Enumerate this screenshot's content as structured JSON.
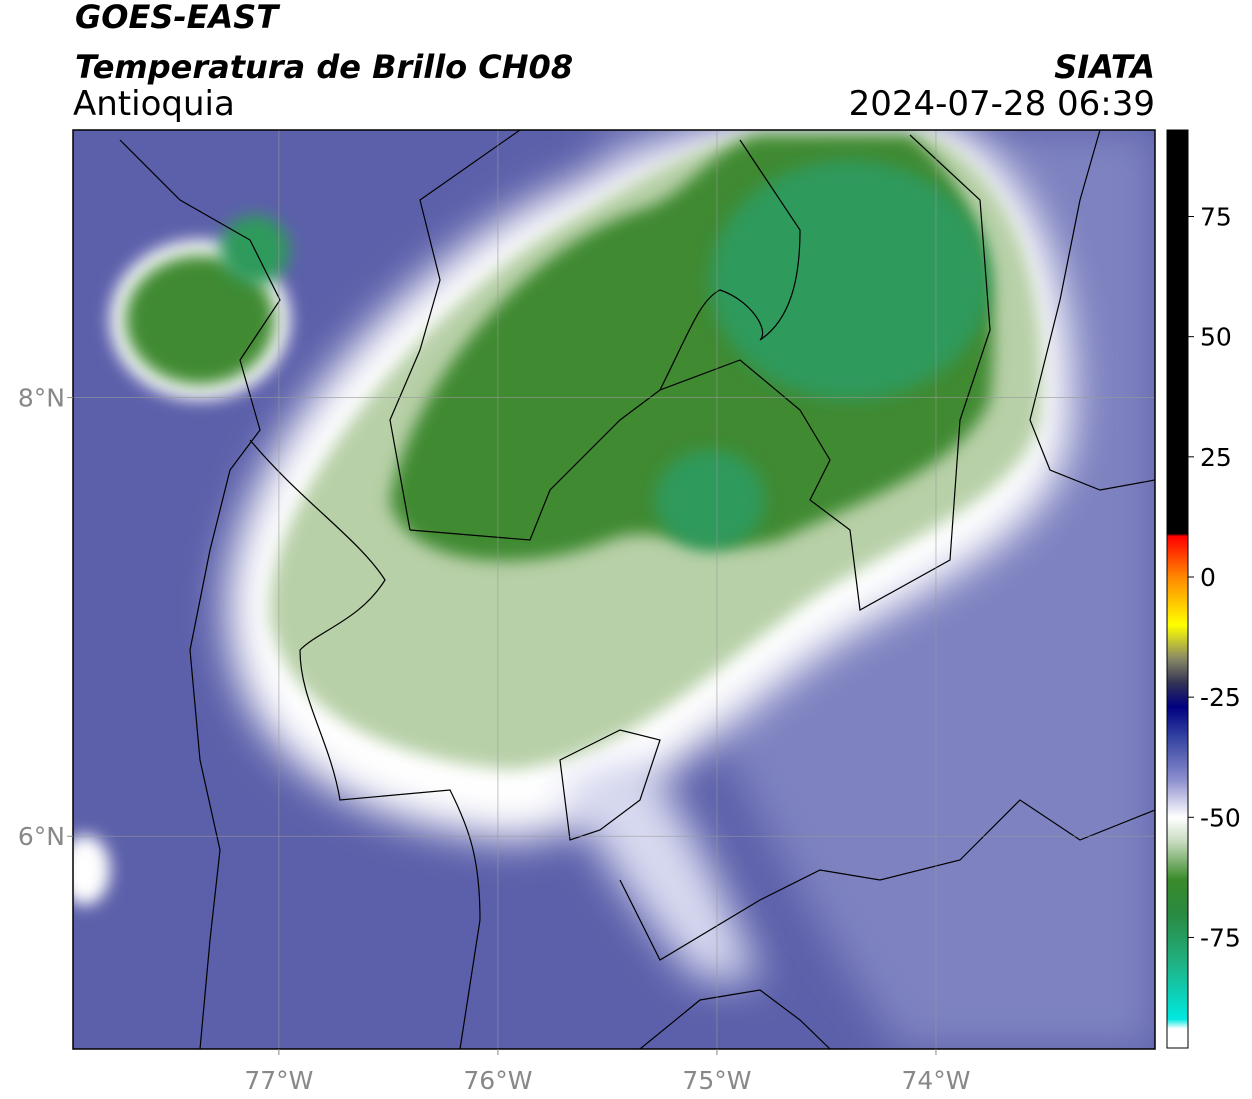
{
  "header": {
    "title": "GOES-EAST",
    "subtitle": "Temperatura de Brillo CH08",
    "region": "Antioquia",
    "source": "SIATA",
    "datetime": "2024-07-28 06:39"
  },
  "map": {
    "xlim": [
      -77.94,
      -73.0
    ],
    "ylim": [
      5.03,
      9.22
    ],
    "xticks": [
      {
        "value": -77,
        "label": "77°W"
      },
      {
        "value": -76,
        "label": "76°W"
      },
      {
        "value": -75,
        "label": "75°W"
      },
      {
        "value": -74,
        "label": "74°W"
      }
    ],
    "yticks": [
      {
        "value": 8,
        "label": "8°N"
      },
      {
        "value": 6,
        "label": "6°N"
      }
    ],
    "grid": true,
    "colorbar": {
      "lim": [
        -98,
        93
      ],
      "ticks": [
        75,
        50,
        25,
        0,
        -25,
        -50,
        -75
      ],
      "colormap": [
        {
          "value": 93,
          "color": "#000000"
        },
        {
          "value": 9,
          "color": "#000000"
        },
        {
          "value": 8.5,
          "color": "#ff0000"
        },
        {
          "value": 0,
          "color": "#ff8800"
        },
        {
          "value": -10,
          "color": "#ffff00"
        },
        {
          "value": -17,
          "color": "#888866"
        },
        {
          "value": -22,
          "color": "#333355"
        },
        {
          "value": -27,
          "color": "#000080"
        },
        {
          "value": -33,
          "color": "#3040a0"
        },
        {
          "value": -42,
          "color": "#8a8ccc"
        },
        {
          "value": -50,
          "color": "#ffffff"
        },
        {
          "value": -55,
          "color": "#c8dcc0"
        },
        {
          "value": -63,
          "color": "#3a8a2a"
        },
        {
          "value": -70,
          "color": "#2a8a40"
        },
        {
          "value": -80,
          "color": "#20b080"
        },
        {
          "value": -92,
          "color": "#00e8e0"
        },
        {
          "value": -94,
          "color": "#ffffff"
        },
        {
          "value": -98,
          "color": "#ffffff"
        }
      ]
    }
  }
}
